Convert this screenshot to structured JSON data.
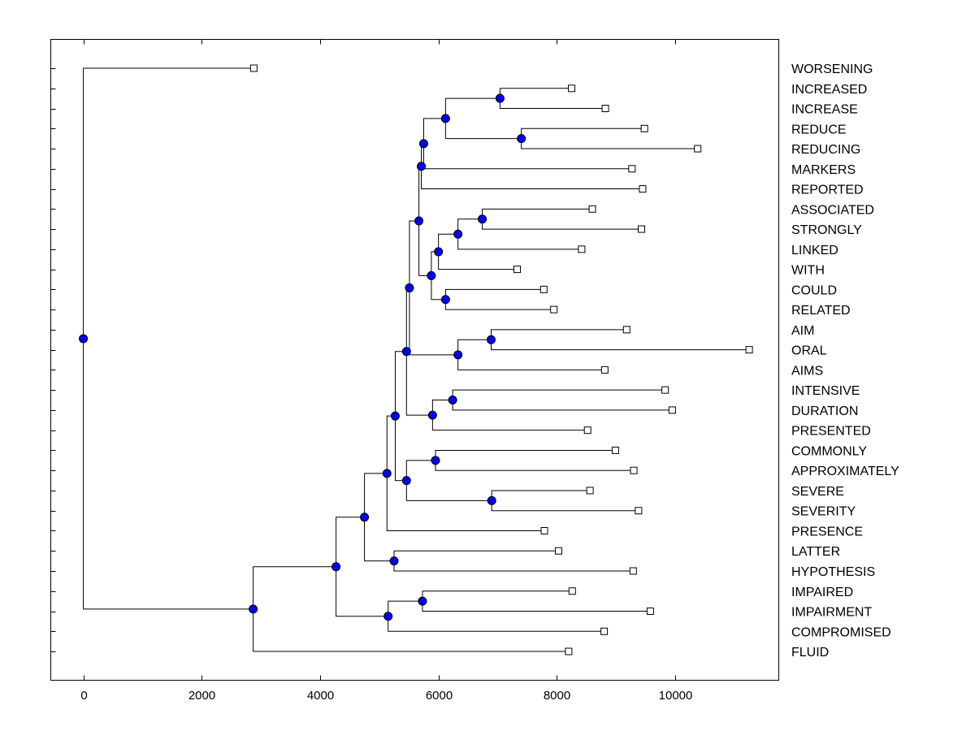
{
  "chart_data": {
    "type": "dendrogram",
    "title": "",
    "xlabel": "",
    "ylabel": "",
    "xlim": [
      -550,
      11750
    ],
    "xticks": [
      0,
      2000,
      4000,
      6000,
      8000,
      10000
    ],
    "colors": {
      "node_fill": "#0000ff",
      "line": "#000000",
      "leaf_fill": "#ffffff"
    },
    "leaves": [
      {
        "label": "WORSENING",
        "x": 2880
      },
      {
        "label": "INCREASED",
        "x": 8250
      },
      {
        "label": "INCREASE",
        "x": 8820
      },
      {
        "label": "REDUCE",
        "x": 9480
      },
      {
        "label": "REDUCING",
        "x": 10380
      },
      {
        "label": "MARKERS",
        "x": 9270
      },
      {
        "label": "REPORTED",
        "x": 9450
      },
      {
        "label": "ASSOCIATED",
        "x": 8600
      },
      {
        "label": "STRONGLY",
        "x": 9430
      },
      {
        "label": "LINKED",
        "x": 8420
      },
      {
        "label": "WITH",
        "x": 7330
      },
      {
        "label": "COULD",
        "x": 7780
      },
      {
        "label": "RELATED",
        "x": 7950
      },
      {
        "label": "AIM",
        "x": 9180
      },
      {
        "label": "ORAL",
        "x": 11250
      },
      {
        "label": "AIMS",
        "x": 8810
      },
      {
        "label": "INTENSIVE",
        "x": 9830
      },
      {
        "label": "DURATION",
        "x": 9950
      },
      {
        "label": "PRESENTED",
        "x": 8520
      },
      {
        "label": "COMMONLY",
        "x": 8990
      },
      {
        "label": "APPROXIMATELY",
        "x": 9300
      },
      {
        "label": "SEVERE",
        "x": 8560
      },
      {
        "label": "SEVERITY",
        "x": 9380
      },
      {
        "label": "PRESENCE",
        "x": 7790
      },
      {
        "label": "LATTER",
        "x": 8030
      },
      {
        "label": "HYPOTHESIS",
        "x": 9290
      },
      {
        "label": "IMPAIRED",
        "x": 8260
      },
      {
        "label": "IMPAIRMENT",
        "x": 9580
      },
      {
        "label": "COMPROMISED",
        "x": 8800
      },
      {
        "label": "FLUID",
        "x": 8200
      }
    ],
    "merges": [
      {
        "x": 7040,
        "children": [
          "L1",
          "L2"
        ]
      },
      {
        "x": 7400,
        "children": [
          "L3",
          "L4"
        ]
      },
      {
        "x": 6120,
        "children": [
          "N0",
          "N1"
        ]
      },
      {
        "x": 5750,
        "children": [
          "N2",
          "L5"
        ]
      },
      {
        "x": 5710,
        "children": [
          "N3",
          "L6"
        ]
      },
      {
        "x": 6740,
        "children": [
          "L7",
          "L8"
        ]
      },
      {
        "x": 6330,
        "children": [
          "N5",
          "L9"
        ]
      },
      {
        "x": 6000,
        "children": [
          "N6",
          "L10"
        ]
      },
      {
        "x": 6120,
        "children": [
          "L11",
          "L12"
        ]
      },
      {
        "x": 5880,
        "children": [
          "N7",
          "N8"
        ]
      },
      {
        "x": 5670,
        "children": [
          "N4",
          "N9"
        ]
      },
      {
        "x": 6890,
        "children": [
          "L13",
          "L14"
        ]
      },
      {
        "x": 6330,
        "children": [
          "N11",
          "L15"
        ]
      },
      {
        "x": 5510,
        "children": [
          "N10",
          "N12"
        ]
      },
      {
        "x": 6240,
        "children": [
          "L16",
          "L17"
        ]
      },
      {
        "x": 5900,
        "children": [
          "N14",
          "L18"
        ]
      },
      {
        "x": 5460,
        "children": [
          "N13",
          "N15"
        ]
      },
      {
        "x": 5950,
        "children": [
          "L19",
          "L20"
        ]
      },
      {
        "x": 6900,
        "children": [
          "L21",
          "L22"
        ]
      },
      {
        "x": 5460,
        "children": [
          "N17",
          "N18"
        ]
      },
      {
        "x": 5270,
        "children": [
          "N16",
          "N19"
        ]
      },
      {
        "x": 5130,
        "children": [
          "N20",
          "L23"
        ]
      },
      {
        "x": 5250,
        "children": [
          "L24",
          "L25"
        ]
      },
      {
        "x": 4750,
        "children": [
          "N21",
          "N22"
        ]
      },
      {
        "x": 5730,
        "children": [
          "L26",
          "L27"
        ]
      },
      {
        "x": 5150,
        "children": [
          "N24",
          "L28"
        ]
      },
      {
        "x": 4270,
        "children": [
          "N23",
          "N25"
        ]
      },
      {
        "x": 2870,
        "children": [
          "N26",
          "L29"
        ]
      },
      {
        "x": 0,
        "children": [
          "L0",
          "N27"
        ]
      }
    ]
  }
}
